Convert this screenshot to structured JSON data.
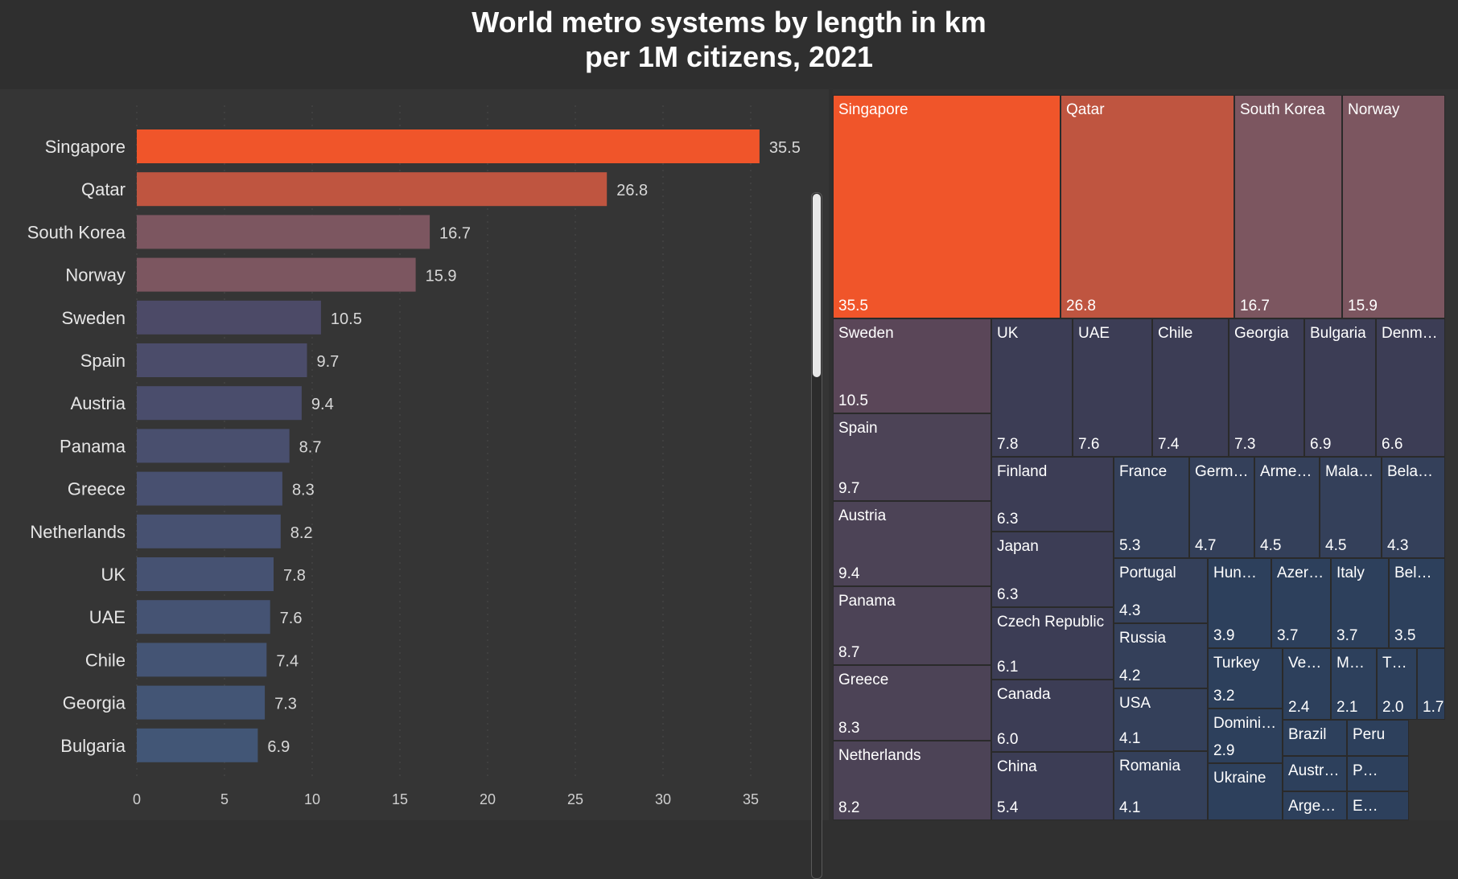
{
  "title_line1": "World metro systems by length in km",
  "title_line2": "per 1M citizens, 2021",
  "colors": {
    "c1": "#f0552a",
    "c2": "#bf5540",
    "c3": "#7c5660",
    "c4": "#5a4658",
    "c5": "#4c4356",
    "c6": "#3c3d55",
    "c7": "#34405a",
    "c8": "#2d405c"
  },
  "chart_data": [
    {
      "type": "bar",
      "orientation": "horizontal",
      "categories": [
        "Singapore",
        "Qatar",
        "South Korea",
        "Norway",
        "Sweden",
        "Spain",
        "Austria",
        "Panama",
        "Greece",
        "Netherlands",
        "UK",
        "UAE",
        "Chile",
        "Georgia",
        "Bulgaria"
      ],
      "values": [
        35.5,
        26.8,
        16.7,
        15.9,
        10.5,
        9.7,
        9.4,
        8.7,
        8.3,
        8.2,
        7.8,
        7.6,
        7.4,
        7.3,
        6.9
      ],
      "xlim": [
        0,
        37
      ],
      "xticks": [
        0,
        5,
        10,
        15,
        20,
        25,
        30,
        35
      ],
      "grid": true,
      "bar_colors": [
        "#f0552a",
        "#bf5540",
        "#7c5660",
        "#7c5660",
        "#4c4a67",
        "#4b4c6a",
        "#4a4d6c",
        "#494f6e",
        "#485070",
        "#475171",
        "#465272",
        "#455373",
        "#445474",
        "#435575",
        "#425676"
      ]
    },
    {
      "type": "treemap",
      "items": [
        {
          "label": "Singapore",
          "value": 35.5,
          "value_text": "35.5"
        },
        {
          "label": "Qatar",
          "value": 26.8,
          "value_text": "26.8"
        },
        {
          "label": "South Korea",
          "value": 16.7,
          "value_text": "16.7"
        },
        {
          "label": "Norway",
          "value": 15.9,
          "value_text": "15.9"
        },
        {
          "label": "Sweden",
          "value": 10.5,
          "value_text": "10.5"
        },
        {
          "label": "UK",
          "value": 7.8,
          "value_text": "7.8"
        },
        {
          "label": "UAE",
          "value": 7.6,
          "value_text": "7.6"
        },
        {
          "label": "Chile",
          "value": 7.4,
          "value_text": "7.4"
        },
        {
          "label": "Georgia",
          "value": 7.3,
          "value_text": "7.3"
        },
        {
          "label": "Bulgaria",
          "value": 6.9,
          "value_text": "6.9"
        },
        {
          "label": "Denm…",
          "value": 6.6,
          "value_text": "6.6"
        },
        {
          "label": "Spain",
          "value": 9.7,
          "value_text": "9.7"
        },
        {
          "label": "Finland",
          "value": 6.3,
          "value_text": "6.3"
        },
        {
          "label": "France",
          "value": 5.3,
          "value_text": "5.3"
        },
        {
          "label": "Germ…",
          "value": 4.7,
          "value_text": "4.7"
        },
        {
          "label": "Arme…",
          "value": 4.5,
          "value_text": "4.5"
        },
        {
          "label": "Mala…",
          "value": 4.5,
          "value_text": "4.5"
        },
        {
          "label": "Bela…",
          "value": 4.3,
          "value_text": "4.3"
        },
        {
          "label": "Austria",
          "value": 9.4,
          "value_text": "9.4"
        },
        {
          "label": "Japan",
          "value": 6.3,
          "value_text": "6.3"
        },
        {
          "label": "Portugal",
          "value": 4.3,
          "value_text": "4.3"
        },
        {
          "label": "Hun…",
          "value": 3.9,
          "value_text": "3.9"
        },
        {
          "label": "Azer…",
          "value": 3.7,
          "value_text": "3.7"
        },
        {
          "label": "Italy",
          "value": 3.7,
          "value_text": "3.7"
        },
        {
          "label": "Bel…",
          "value": 3.5,
          "value_text": "3.5"
        },
        {
          "label": "Panama",
          "value": 8.7,
          "value_text": "8.7"
        },
        {
          "label": "Czech Republic",
          "value": 6.1,
          "value_text": "6.1"
        },
        {
          "label": "Russia",
          "value": 4.2,
          "value_text": "4.2"
        },
        {
          "label": "Turkey",
          "value": 3.2,
          "value_text": "3.2"
        },
        {
          "label": "Ve…",
          "value": 2.4,
          "value_text": "2.4"
        },
        {
          "label": "M…",
          "value": 2.1,
          "value_text": "2.1"
        },
        {
          "label": "T…",
          "value": 2.0,
          "value_text": "2.0"
        },
        {
          "label": "",
          "value": 1.7,
          "value_text": "1.7"
        },
        {
          "label": "Greece",
          "value": 8.3,
          "value_text": "8.3"
        },
        {
          "label": "Canada",
          "value": 6.0,
          "value_text": "6.0"
        },
        {
          "label": "USA",
          "value": 4.1,
          "value_text": "4.1"
        },
        {
          "label": "Domini…",
          "value": 2.9,
          "value_text": "2.9"
        },
        {
          "label": "Brazil",
          "value": null,
          "value_text": ""
        },
        {
          "label": "Peru",
          "value": null,
          "value_text": ""
        },
        {
          "label": "Netherlands",
          "value": 8.2,
          "value_text": "8.2"
        },
        {
          "label": "China",
          "value": 5.4,
          "value_text": "5.4"
        },
        {
          "label": "Romania",
          "value": 4.1,
          "value_text": "4.1"
        },
        {
          "label": "Ukraine",
          "value": null,
          "value_text": ""
        },
        {
          "label": "Austr…",
          "value": null,
          "value_text": ""
        },
        {
          "label": "P…",
          "value": null,
          "value_text": ""
        },
        {
          "label": "Arge…",
          "value": null,
          "value_text": ""
        },
        {
          "label": "E…",
          "value": null,
          "value_text": ""
        }
      ]
    }
  ]
}
